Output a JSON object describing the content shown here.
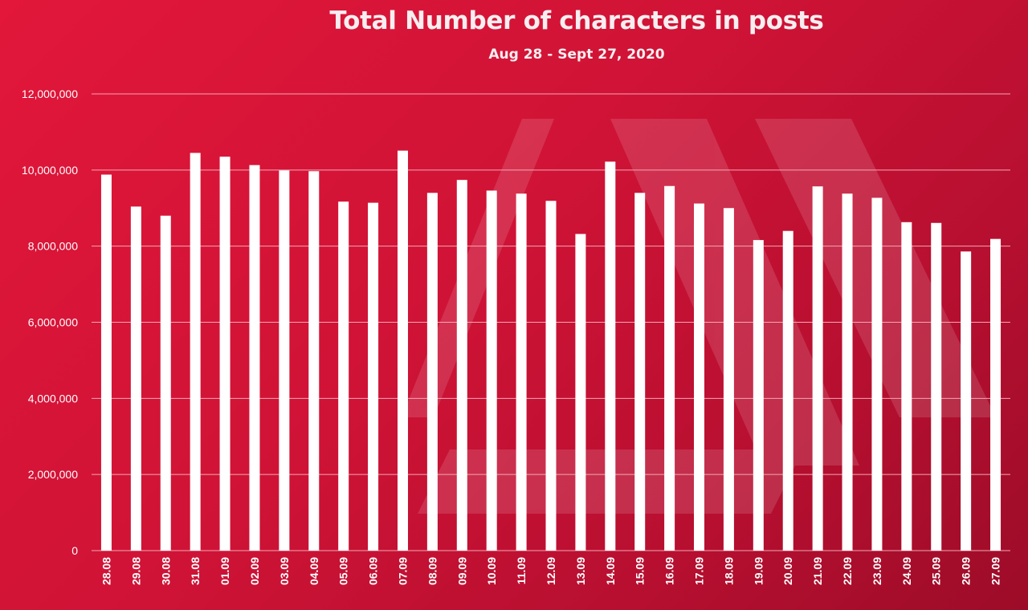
{
  "chart_data": {
    "type": "bar",
    "title": "Total Number of characters in posts",
    "subtitle": "Aug 28 - Sept 27, 2020",
    "xlabel": "",
    "ylabel": "",
    "ylim": [
      0,
      12000000
    ],
    "yticks": [
      0,
      2000000,
      4000000,
      6000000,
      8000000,
      10000000,
      12000000
    ],
    "ytick_labels": [
      "0",
      "2,000,000",
      "4,000,000",
      "6,000,000",
      "8,000,000",
      "10,000,000",
      "12,000,000"
    ],
    "grid": true,
    "legend": "none",
    "bar_color": "#ffffff",
    "grid_color": "#f2a6b3",
    "categories": [
      "28.08",
      "29.08",
      "30.08",
      "31.08",
      "01.09",
      "02.09",
      "03.09",
      "04.09",
      "05.09",
      "06.09",
      "07.09",
      "08.09",
      "09.09",
      "10.09",
      "11.09",
      "12.09",
      "13.09",
      "14.09",
      "15.09",
      "16.09",
      "17.09",
      "18.09",
      "19.09",
      "20.09",
      "21.09",
      "22.09",
      "23.09",
      "24.09",
      "25.09",
      "26.09",
      "27.09"
    ],
    "values": [
      9880000,
      9040000,
      8800000,
      10450000,
      10350000,
      10130000,
      9990000,
      9970000,
      9170000,
      9140000,
      10510000,
      9400000,
      9740000,
      9460000,
      9380000,
      9190000,
      8320000,
      10220000,
      9400000,
      9580000,
      9120000,
      9000000,
      8160000,
      8400000,
      9570000,
      9380000,
      9270000,
      8630000,
      8610000,
      7860000,
      8190000
    ]
  }
}
